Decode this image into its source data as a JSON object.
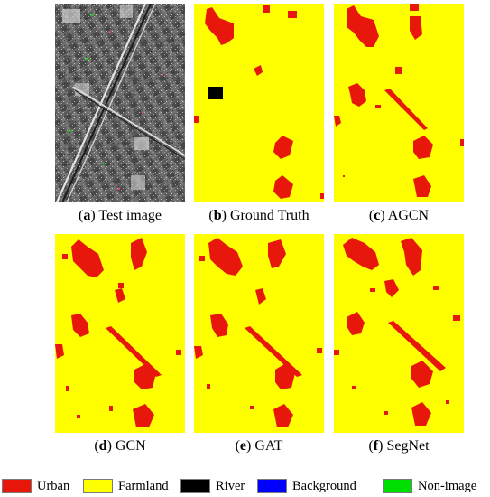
{
  "colors": {
    "urban": "#e8170c",
    "farmland": "#ffff00",
    "river": "#000000",
    "background": "#0000ff",
    "non_image": "#00e000"
  },
  "panels": [
    {
      "letter": "a",
      "label": " Test image",
      "kind": "sar"
    },
    {
      "letter": "b",
      "label": " Ground Truth",
      "kind": "map"
    },
    {
      "letter": "c",
      "label": " AGCN",
      "kind": "map"
    },
    {
      "letter": "d",
      "label": " GCN",
      "kind": "map"
    },
    {
      "letter": "e",
      "label": " GAT",
      "kind": "map"
    },
    {
      "letter": "f",
      "label": " SegNet",
      "kind": "map"
    }
  ],
  "legend": [
    {
      "label": "Urban",
      "color": "#e8170c"
    },
    {
      "label": "Farmland",
      "color": "#ffff00"
    },
    {
      "label": "River",
      "color": "#000000"
    },
    {
      "label": "Background",
      "color": "#0000ff"
    },
    {
      "label": "Non-image",
      "color": "#00e000"
    }
  ]
}
